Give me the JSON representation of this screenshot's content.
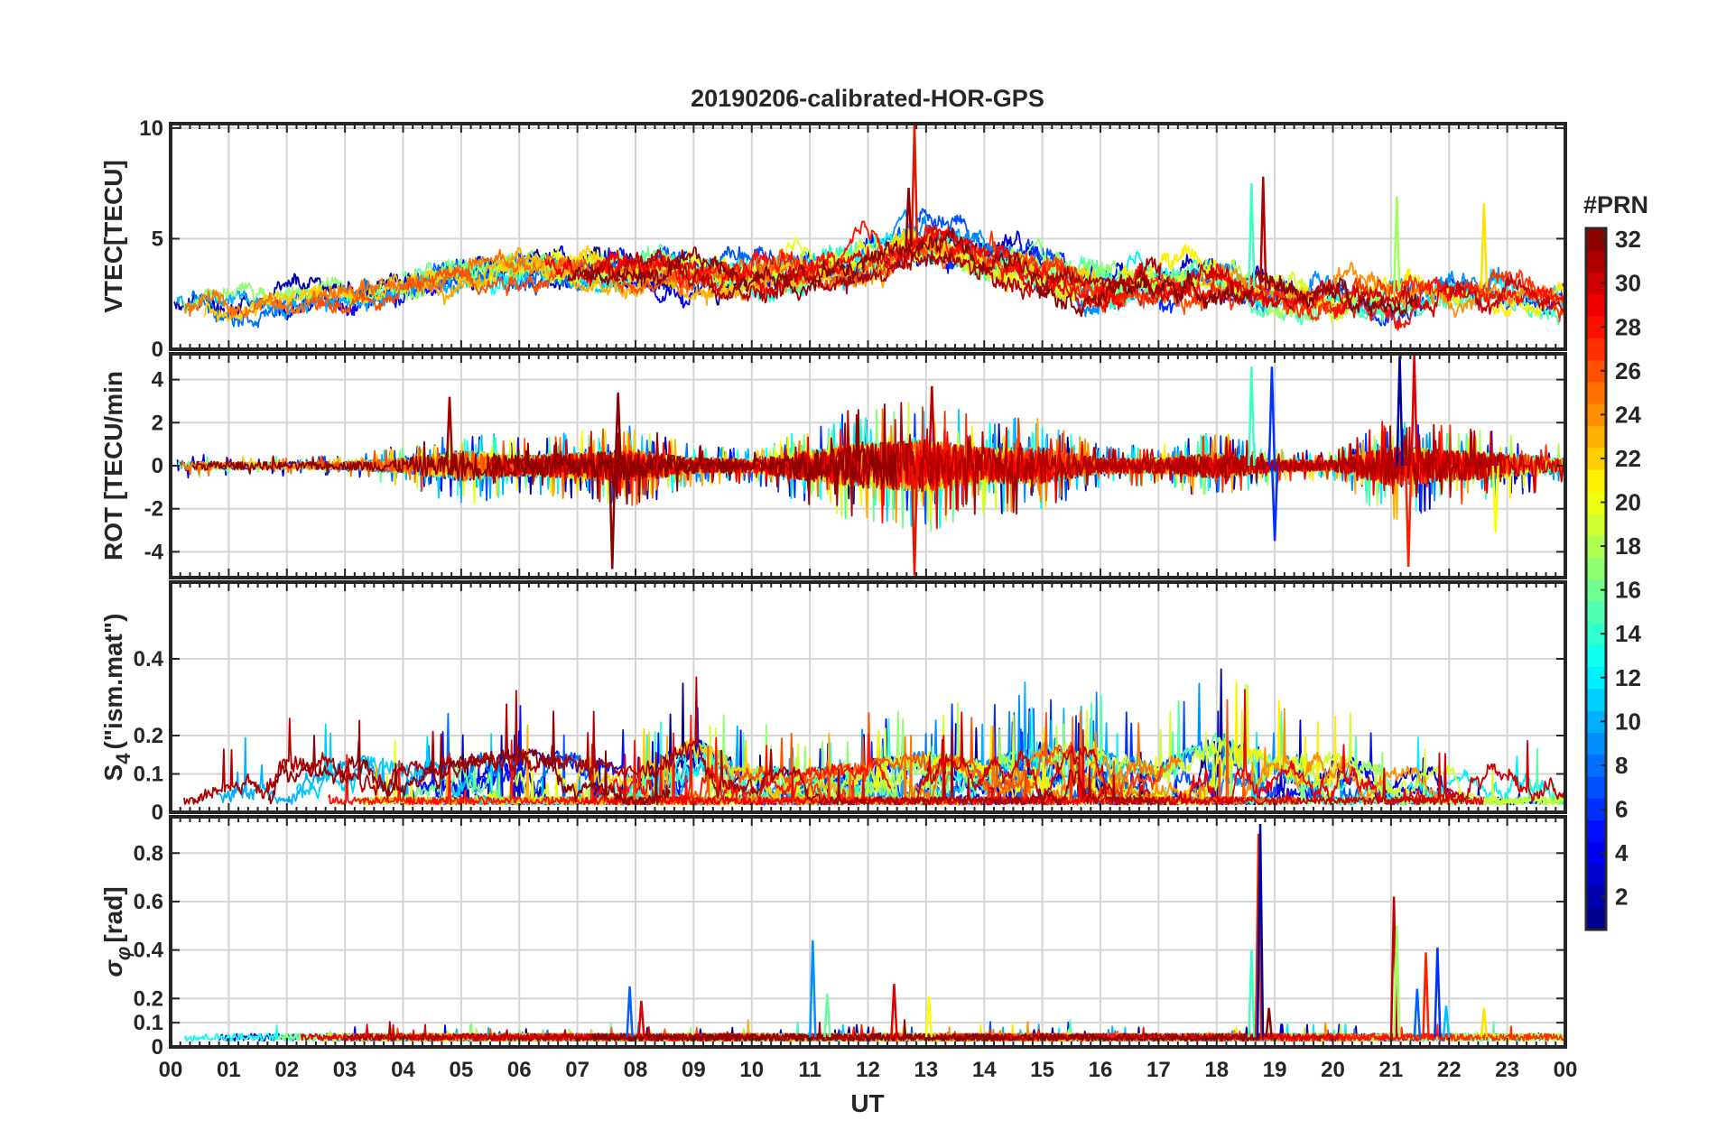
{
  "chart_data": {
    "type": "line",
    "title": "20190206-calibrated-HOR-GPS",
    "xlabel": "UT",
    "x_ticks": [
      "00",
      "01",
      "02",
      "03",
      "04",
      "05",
      "06",
      "07",
      "08",
      "09",
      "10",
      "11",
      "12",
      "13",
      "14",
      "15",
      "16",
      "17",
      "18",
      "19",
      "20",
      "21",
      "22",
      "23",
      "00"
    ],
    "xlim": [
      0,
      24
    ],
    "series_count": 32,
    "series_note": "One trace per GPS satellite PRN 1–32, coloured by PRN (jet colormap); traces below are representative envelopes read off the figure.",
    "panels": [
      {
        "id": "vtec",
        "ylabel": "VTEC[TECU]",
        "ylim": [
          0,
          10.2
        ],
        "y_ticks": [
          0,
          5,
          10
        ],
        "y_tick_labels": [
          "0",
          "5",
          "10"
        ],
        "grid": true,
        "envelope": {
          "hours": [
            0,
            1,
            2,
            3,
            4,
            5,
            6,
            7,
            8,
            9,
            10,
            11,
            12,
            13,
            14,
            15,
            16,
            17,
            18,
            19,
            20,
            21,
            22,
            23,
            24
          ],
          "mean": [
            2.0,
            2.0,
            2.3,
            2.5,
            3.0,
            3.4,
            3.7,
            3.6,
            3.5,
            3.3,
            3.3,
            3.6,
            4.2,
            4.8,
            4.2,
            3.5,
            3.0,
            2.8,
            3.0,
            2.6,
            2.4,
            2.6,
            2.8,
            2.8,
            2.3
          ],
          "spread": [
            0.8,
            0.8,
            0.8,
            0.8,
            0.9,
            1.0,
            1.0,
            1.0,
            1.1,
            1.1,
            1.1,
            1.2,
            1.3,
            1.4,
            1.3,
            1.2,
            1.2,
            1.2,
            1.3,
            1.3,
            1.2,
            1.2,
            1.2,
            1.2,
            1.0
          ]
        },
        "spikes": [
          {
            "hour": 12.8,
            "value": 10.2,
            "color": "#e01a00"
          },
          {
            "hour": 12.7,
            "value": 7.3,
            "color": "#8b0000"
          },
          {
            "hour": 18.6,
            "value": 7.5,
            "color": "#40ffc0"
          },
          {
            "hour": 18.8,
            "value": 7.8,
            "color": "#b00000"
          },
          {
            "hour": 22.6,
            "value": 6.6,
            "color": "#ffe000"
          },
          {
            "hour": 21.1,
            "value": 6.9,
            "color": "#a0ff60"
          }
        ]
      },
      {
        "id": "rot",
        "ylabel": "ROT [TECU/min",
        "ylim": [
          -5.2,
          5.2
        ],
        "y_ticks": [
          -4,
          -2,
          0,
          2,
          4
        ],
        "y_tick_labels": [
          "-4",
          "-2",
          "0",
          "2",
          "4"
        ],
        "grid": true,
        "activity_hours": [
          0,
          1,
          2,
          3,
          4,
          5,
          6,
          7,
          8,
          9,
          10,
          11,
          12,
          13,
          14,
          15,
          16,
          17,
          18,
          19,
          20,
          21,
          22,
          23,
          24
        ],
        "activity_amplitude": [
          0.4,
          0.3,
          0.3,
          0.3,
          0.6,
          1.2,
          0.8,
          1.0,
          1.2,
          0.6,
          0.5,
          1.2,
          1.8,
          2.0,
          1.4,
          1.4,
          0.6,
          0.6,
          1.0,
          0.5,
          0.4,
          1.6,
          1.2,
          1.0,
          0.6
        ],
        "spikes": [
          {
            "hour": 4.8,
            "value": 3.2,
            "color": "#a00000"
          },
          {
            "hour": 7.6,
            "value": -4.8,
            "color": "#8b0000"
          },
          {
            "hour": 7.7,
            "value": 3.4,
            "color": "#8b0000"
          },
          {
            "hour": 12.8,
            "value": -5.1,
            "color": "#e01a00"
          },
          {
            "hour": 13.1,
            "value": 3.7,
            "color": "#c00000"
          },
          {
            "hour": 18.6,
            "value": 4.6,
            "color": "#40ffc0"
          },
          {
            "hour": 18.95,
            "value": 4.6,
            "color": "#0030ff"
          },
          {
            "hour": 19.0,
            "value": -3.5,
            "color": "#0030ff"
          },
          {
            "hour": 21.15,
            "value": 5.1,
            "color": "#0000a0"
          },
          {
            "hour": 21.3,
            "value": -4.7,
            "color": "#ff2000"
          },
          {
            "hour": 21.4,
            "value": 5.2,
            "color": "#e00000"
          },
          {
            "hour": 22.8,
            "value": -3.1,
            "color": "#ffff00"
          }
        ]
      },
      {
        "id": "s4",
        "ylabel": "S_4 (\"ism.mat\")",
        "ylabel_main": "S",
        "ylabel_sub": "4",
        "ylabel_rest": "(\"ism.mat\")",
        "ylim": [
          0,
          0.6
        ],
        "y_ticks": [
          0,
          0.1,
          0.2,
          0.4
        ],
        "y_tick_labels": [
          "0",
          "0.1",
          "0.2",
          "0.4"
        ],
        "grid": true,
        "envelope": {
          "hours": [
            0,
            1,
            2,
            3,
            4,
            5,
            6,
            7,
            8,
            9,
            10,
            11,
            12,
            13,
            14,
            15,
            16,
            17,
            18,
            19,
            20,
            21,
            22,
            23,
            24
          ],
          "peak": [
            0.24,
            0.12,
            0.18,
            0.2,
            0.15,
            0.18,
            0.22,
            0.19,
            0.13,
            0.26,
            0.14,
            0.13,
            0.17,
            0.2,
            0.16,
            0.24,
            0.21,
            0.15,
            0.28,
            0.18,
            0.2,
            0.13,
            0.14,
            0.15,
            0.12
          ]
        }
      },
      {
        "id": "sigma_phi",
        "ylabel": "σ_φ[rad]",
        "ylabel_main": "σ",
        "ylabel_sub": "φ",
        "ylabel_rest": "[rad]",
        "ylim": [
          0,
          0.95
        ],
        "y_ticks": [
          0,
          0.1,
          0.2,
          0.4,
          0.6,
          0.8
        ],
        "y_tick_labels": [
          "0",
          "0.1",
          "0.2",
          "0.4",
          "0.6",
          "0.8"
        ],
        "grid": true,
        "baseline": 0.04,
        "spikes": [
          {
            "hour": 7.9,
            "value": 0.25,
            "color": "#0060ff"
          },
          {
            "hour": 8.1,
            "value": 0.19,
            "color": "#e00000"
          },
          {
            "hour": 11.05,
            "value": 0.44,
            "color": "#0090ff"
          },
          {
            "hour": 11.3,
            "value": 0.22,
            "color": "#60ffa0"
          },
          {
            "hour": 12.45,
            "value": 0.26,
            "color": "#e00000"
          },
          {
            "hour": 13.05,
            "value": 0.21,
            "color": "#ffff00"
          },
          {
            "hour": 18.6,
            "value": 0.4,
            "color": "#40ffc0"
          },
          {
            "hour": 18.72,
            "value": 0.88,
            "color": "#e03000"
          },
          {
            "hour": 18.75,
            "value": 0.92,
            "color": "#0000a0"
          },
          {
            "hour": 18.9,
            "value": 0.16,
            "color": "#8b0000"
          },
          {
            "hour": 21.05,
            "value": 0.62,
            "color": "#c00000"
          },
          {
            "hour": 21.1,
            "value": 0.5,
            "color": "#a0ff60"
          },
          {
            "hour": 21.45,
            "value": 0.24,
            "color": "#0060ff"
          },
          {
            "hour": 21.6,
            "value": 0.39,
            "color": "#ff2000"
          },
          {
            "hour": 21.8,
            "value": 0.41,
            "color": "#0030ff"
          },
          {
            "hour": 21.95,
            "value": 0.17,
            "color": "#00c0ff"
          },
          {
            "hour": 22.6,
            "value": 0.16,
            "color": "#ffe000"
          }
        ]
      }
    ],
    "colorbar": {
      "label": "#PRN",
      "range": [
        1,
        32
      ],
      "ticks": [
        2,
        4,
        6,
        8,
        10,
        12,
        14,
        16,
        18,
        20,
        22,
        24,
        26,
        28,
        30,
        32
      ],
      "tick_labels": [
        "2",
        "4",
        "6",
        "8",
        "10",
        "12",
        "14",
        "16",
        "18",
        "20",
        "22",
        "24",
        "26",
        "28",
        "30",
        "32"
      ],
      "colormap": "jet"
    }
  }
}
